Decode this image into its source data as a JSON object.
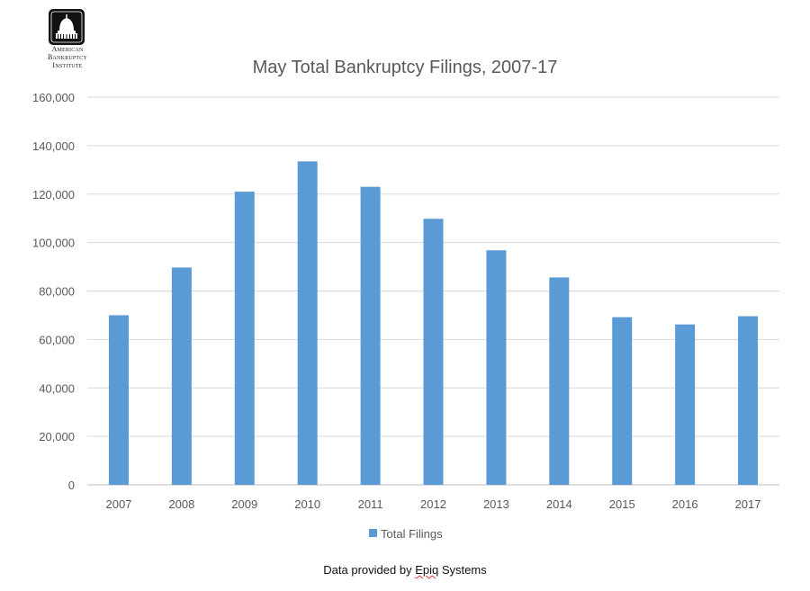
{
  "logo": {
    "line1": "American",
    "line2": "Bankruptcy",
    "line3": "Institute"
  },
  "footer": {
    "prefix": "Data provided by ",
    "company_first": "Epiq",
    "company_rest": " Systems"
  },
  "colors": {
    "bar": "#5B9BD5",
    "grid": "#D9D9D9",
    "text": "#595959"
  },
  "chart_data": {
    "type": "bar",
    "title": "May Total Bankruptcy Filings, 2007-17",
    "xlabel": "",
    "ylabel": "",
    "categories": [
      "2007",
      "2008",
      "2009",
      "2010",
      "2011",
      "2012",
      "2013",
      "2014",
      "2015",
      "2016",
      "2017"
    ],
    "series": [
      {
        "name": "Total Filings",
        "values": [
          70000,
          89700,
          121000,
          133500,
          123000,
          109800,
          96800,
          85600,
          69200,
          66200,
          69600
        ]
      }
    ],
    "ylim": [
      0,
      160000
    ],
    "yticks": [
      "0",
      "20,000",
      "40,000",
      "60,000",
      "80,000",
      "100,000",
      "120,000",
      "140,000",
      "160,000"
    ],
    "grid": true,
    "legend_position": "bottom"
  }
}
